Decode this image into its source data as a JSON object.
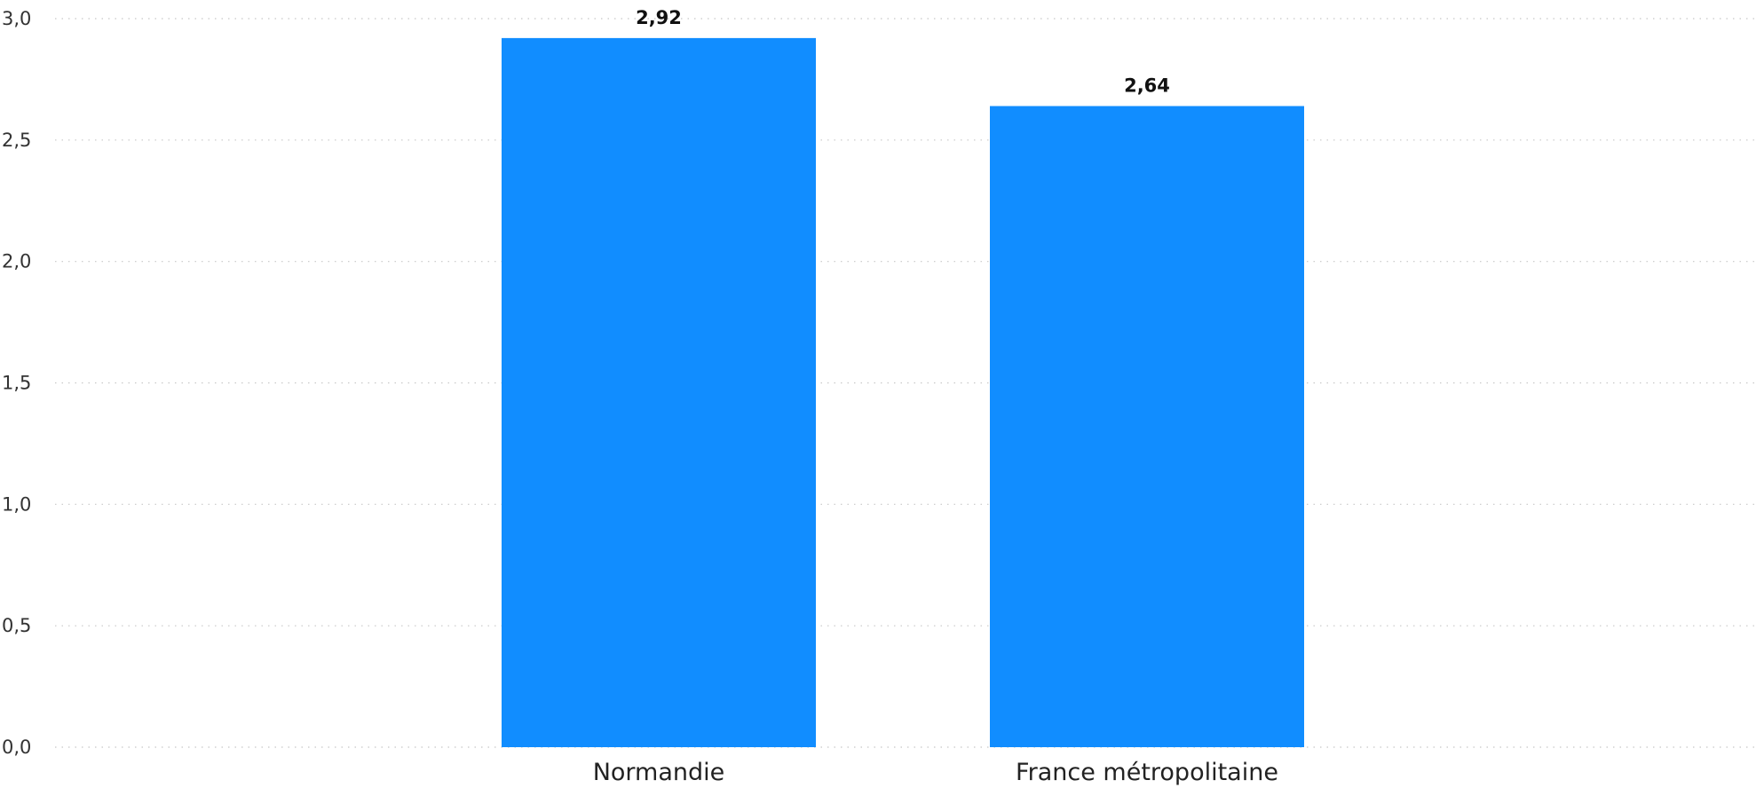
{
  "chart_data": {
    "type": "bar",
    "categories": [
      "Normandie",
      "France métropolitaine"
    ],
    "values": [
      2.92,
      2.64
    ],
    "value_labels": [
      "2,92",
      "2,64"
    ],
    "title": "",
    "xlabel": "",
    "ylabel": "",
    "ylim": [
      0,
      3
    ],
    "yticks": [
      0,
      0.5,
      1,
      1.5,
      2,
      2.5,
      3
    ],
    "ytick_labels": [
      "0,0",
      "0,5",
      "1,0",
      "1,5",
      "2,0",
      "2,5",
      "3,0"
    ],
    "grid": true,
    "grid_style": "dotted",
    "legend": "none",
    "bar_color": "#118DFF"
  }
}
